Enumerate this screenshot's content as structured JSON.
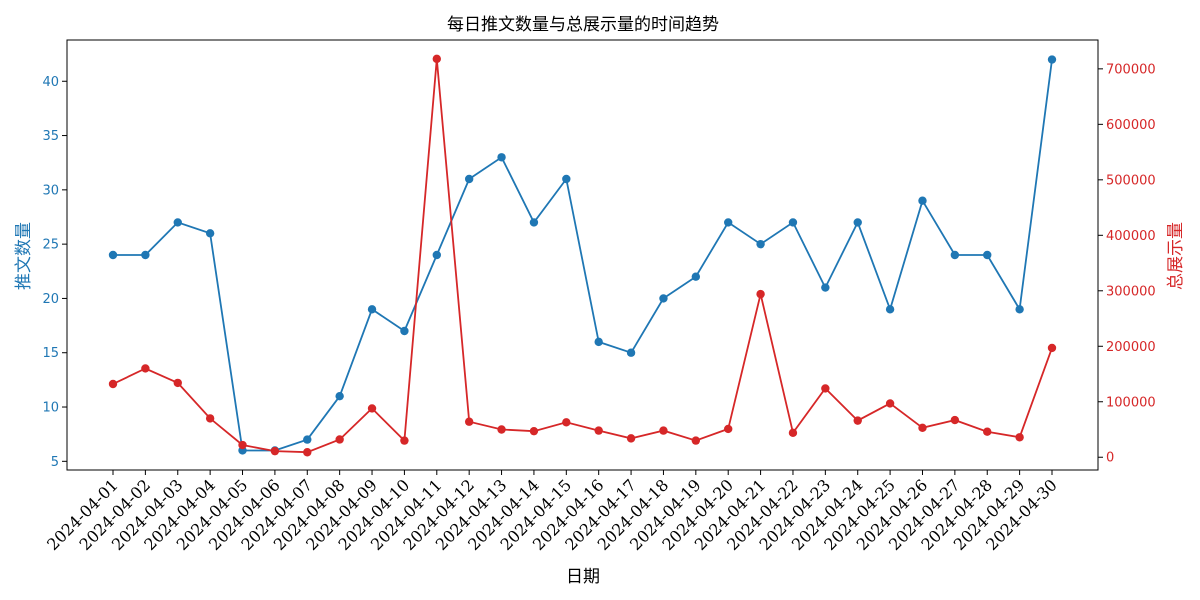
{
  "chart_data": {
    "type": "line",
    "title": "每日推文数量与总展示量的时间趋势",
    "xlabel": "日期",
    "categories": [
      "2024-04-01",
      "2024-04-02",
      "2024-04-03",
      "2024-04-04",
      "2024-04-05",
      "2024-04-06",
      "2024-04-07",
      "2024-04-08",
      "2024-04-09",
      "2024-04-10",
      "2024-04-11",
      "2024-04-12",
      "2024-04-13",
      "2024-04-14",
      "2024-04-15",
      "2024-04-16",
      "2024-04-17",
      "2024-04-18",
      "2024-04-19",
      "2024-04-20",
      "2024-04-21",
      "2024-04-22",
      "2024-04-23",
      "2024-04-24",
      "2024-04-25",
      "2024-04-26",
      "2024-04-27",
      "2024-04-28",
      "2024-04-29",
      "2024-04-30"
    ],
    "grid": false,
    "series": [
      {
        "name": "推文数量",
        "axis": "left",
        "color": "#1f77b4",
        "values": [
          24,
          24,
          27,
          26,
          6,
          6,
          7,
          11,
          19,
          17,
          24,
          31,
          33,
          27,
          31,
          16,
          15,
          20,
          22,
          27,
          25,
          27,
          21,
          27,
          19,
          29,
          24,
          24,
          19,
          42
        ]
      },
      {
        "name": "总展示量",
        "axis": "right",
        "color": "#d62728",
        "values": [
          132000,
          160000,
          134000,
          70000,
          22000,
          11000,
          9000,
          32000,
          88000,
          30000,
          718000,
          64000,
          50000,
          47000,
          63000,
          48000,
          34000,
          48000,
          30000,
          51000,
          294000,
          44000,
          124000,
          66000,
          97000,
          53000,
          67000,
          46000,
          36000,
          197000
        ]
      }
    ],
    "y_left": {
      "label": "推文数量",
      "ylim": [
        4.2,
        43.8
      ],
      "ticks": [
        5,
        10,
        15,
        20,
        25,
        30,
        35,
        40
      ]
    },
    "y_right": {
      "label": "总展示量",
      "ylim": [
        -23000,
        752000
      ],
      "ticks": [
        0,
        100000,
        200000,
        300000,
        400000,
        500000,
        600000,
        700000
      ]
    }
  }
}
